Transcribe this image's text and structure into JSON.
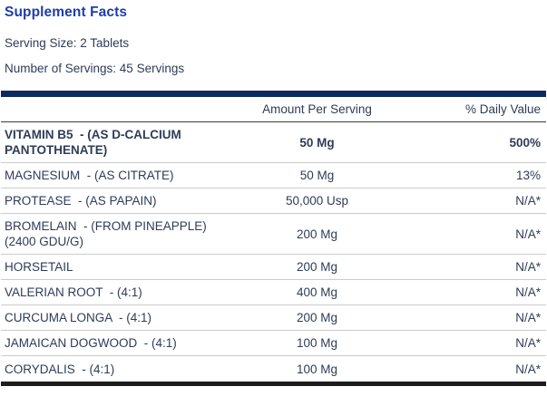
{
  "label": {
    "title": "Supplement Facts",
    "serving_size": "Serving Size: 2 Tablets",
    "number_of_servings": "Number of Servings: 45 Servings"
  },
  "table": {
    "columns": {
      "amount": "Amount Per Serving",
      "daily_value": "% Daily Value"
    },
    "rows": [
      {
        "name": "VITAMIN B5  - (AS D-CALCIUM PANTOTHENATE)",
        "amount": "50 Mg",
        "daily_value": "500%",
        "bold": true
      },
      {
        "name": "MAGNESIUM  - (AS CITRATE)",
        "amount": "50 Mg",
        "daily_value": "13%",
        "bold": false
      },
      {
        "name": "PROTEASE  - (AS PAPAIN)",
        "amount": "50,000 Usp",
        "daily_value": "N/A*",
        "bold": false
      },
      {
        "name": "BROMELAIN  - (FROM PINEAPPLE)(2400 GDU/G)",
        "amount": "200 Mg",
        "daily_value": "N/A*",
        "bold": false
      },
      {
        "name": "HORSETAIL",
        "amount": "200 Mg",
        "daily_value": "N/A*",
        "bold": false
      },
      {
        "name": "VALERIAN ROOT  - (4:1)",
        "amount": "400 Mg",
        "daily_value": "N/A*",
        "bold": false
      },
      {
        "name": "CURCUMA LONGA  - (4:1)",
        "amount": "200 Mg",
        "daily_value": "N/A*",
        "bold": false
      },
      {
        "name": "JAMAICAN DOGWOOD  - (4:1)",
        "amount": "100 Mg",
        "daily_value": "N/A*",
        "bold": false
      },
      {
        "name": "CORYDALIS  - (4:1)",
        "amount": "100 Mg",
        "daily_value": "N/A*",
        "bold": false
      }
    ]
  },
  "colors": {
    "title_blue": "#1e3ea8",
    "body_text": "#2e3c58",
    "top_bar": "#0b2a5f",
    "bottom_bar": "#1d1d1d",
    "header_rule": "#3c3c3c",
    "row_rule": "#cbcbcb",
    "background": "#ffffff"
  }
}
